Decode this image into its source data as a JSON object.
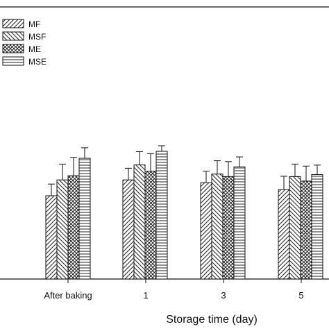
{
  "chart_data": {
    "type": "bar",
    "xlabel": "Storage time (day)",
    "ylabel": "",
    "categories": [
      "After baking",
      "1",
      "3",
      "5"
    ],
    "ylim": [
      0,
      100
    ],
    "legend_position": "top-left",
    "grid": false,
    "series": [
      {
        "name": "MF",
        "pattern": "diagonal-forward",
        "values": [
          50,
          59.5,
          57.8,
          53.7
        ],
        "errors": [
          7,
          7,
          7,
          8
        ]
      },
      {
        "name": "MSF",
        "pattern": "diagonal-backward",
        "values": [
          59.5,
          68.5,
          63,
          61.5
        ],
        "errors": [
          9.5,
          8,
          8,
          7.5
        ]
      },
      {
        "name": "ME",
        "pattern": "crosshatch",
        "values": [
          62,
          64.8,
          61.5,
          58.8
        ],
        "errors": [
          11,
          10.5,
          9,
          9
        ]
      },
      {
        "name": "MSE",
        "pattern": "horizontal",
        "values": [
          72.5,
          76.7,
          67.3,
          62.7
        ],
        "errors": [
          6.3,
          3.3,
          6,
          5.7
        ]
      }
    ]
  }
}
